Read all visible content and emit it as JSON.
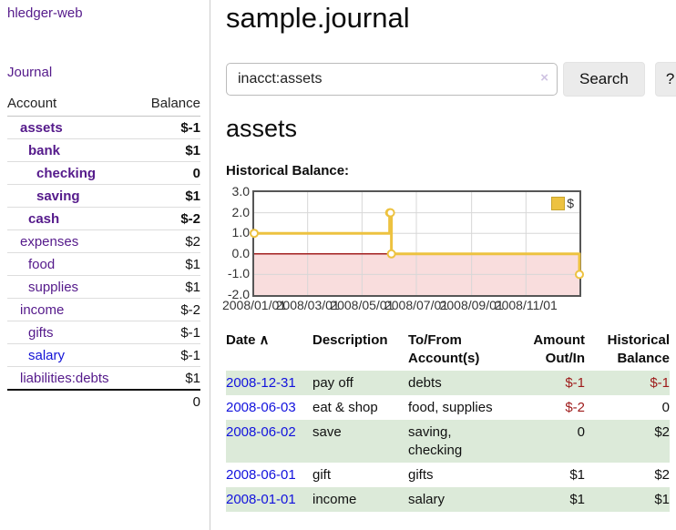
{
  "palette": {
    "link_purple": "#551a8b",
    "link_blue": "#1414d6",
    "negative_strong": "#9e1a1a",
    "negative_medium": "#b26a6a",
    "negative_soft": "#c79090",
    "row_stripe_green": "#dcead9",
    "series_gold": "#edc240"
  },
  "brand": "hledger-web",
  "nav": {
    "journal": "Journal"
  },
  "page": {
    "title": "sample.journal"
  },
  "search": {
    "value": "inacct:assets",
    "clear_icon": "×",
    "button_label": "Search",
    "help_label": "?"
  },
  "sidebar": {
    "header": {
      "account": "Account",
      "balance": "Balance"
    },
    "accounts": [
      {
        "name": "assets",
        "balance": "$-1"
      },
      {
        "name": "bank",
        "balance": "$1"
      },
      {
        "name": "checking",
        "balance": "0"
      },
      {
        "name": "saving",
        "balance": "$1"
      },
      {
        "name": "cash",
        "balance": "$-2"
      },
      {
        "name": "expenses",
        "balance": "$2"
      },
      {
        "name": "food",
        "balance": "$1"
      },
      {
        "name": "supplies",
        "balance": "$1"
      },
      {
        "name": "income",
        "balance": "$-2"
      },
      {
        "name": "gifts",
        "balance": "$-1"
      },
      {
        "name": "salary",
        "balance": "$-1"
      },
      {
        "name": "liabilities:debts",
        "balance": "$1"
      }
    ],
    "total": "0"
  },
  "account_view": {
    "heading": "assets",
    "section_label": "Historical Balance:"
  },
  "chart_data": {
    "type": "line",
    "title": "Historical Balance:",
    "series": [
      {
        "name": "$",
        "color": "#edc240",
        "step": true,
        "points": [
          [
            "2008-01-01",
            1.0
          ],
          [
            "2008-06-01",
            2.0
          ],
          [
            "2008-06-02",
            2.0
          ],
          [
            "2008-06-03",
            0.0
          ],
          [
            "2008-12-31",
            -1.0
          ]
        ]
      }
    ],
    "xmin": "2008-01-01",
    "xmax": "2008-12-31",
    "ylim": [
      -2.0,
      3.0
    ],
    "x_ticks": [
      "2008/01/01",
      "2008/03/01",
      "2008/05/01",
      "2008/07/01",
      "2008/09/01",
      "2008/11/01"
    ],
    "y_ticks": [
      "3.0",
      "2.0",
      "1.0",
      "0.0",
      "-1.0",
      "-2.0"
    ],
    "grid": true,
    "legend": {
      "label": "$",
      "position": "top-right"
    },
    "negative_region_color": "#f9dddd",
    "zero_line_color": "#a32020",
    "grid_color": "#d7d7d7"
  },
  "register": {
    "columns": {
      "date": "Date",
      "sort_arrow": "∧",
      "description": "Description",
      "tofrom1": "To/From",
      "tofrom2": "Account(s)",
      "amount1": "Amount",
      "amount2": "Out/In",
      "hist1": "Historical",
      "hist2": "Balance"
    },
    "rows": [
      {
        "date": "2008-12-31",
        "description": "pay off",
        "accounts": "debts",
        "accounts2": "",
        "amount": "$-1",
        "balance": "$-1"
      },
      {
        "date": "2008-06-03",
        "description": "eat & shop",
        "accounts": "food, supplies",
        "accounts2": "",
        "amount": "$-2",
        "balance": "0"
      },
      {
        "date": "2008-06-02",
        "description": "save",
        "accounts": "saving,",
        "accounts2": "checking",
        "amount": "0",
        "balance": "$2"
      },
      {
        "date": "2008-06-01",
        "description": "gift",
        "accounts": "gifts",
        "accounts2": "",
        "amount": "$1",
        "balance": "$2"
      },
      {
        "date": "2008-01-01",
        "description": "income",
        "accounts": "salary",
        "accounts2": "",
        "amount": "$1",
        "balance": "$1"
      }
    ]
  }
}
